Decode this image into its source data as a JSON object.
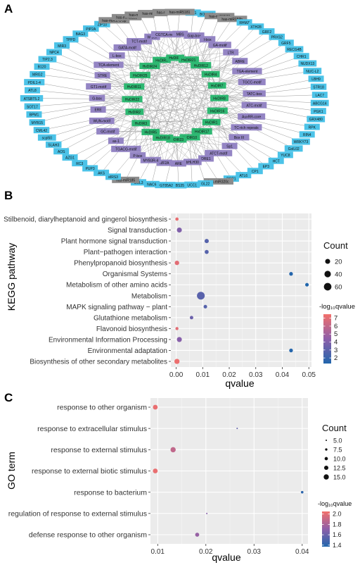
{
  "panel_labels": {
    "a": "A",
    "b": "B",
    "c": "C"
  },
  "network": {
    "colors": {
      "receptor": "#4cc3e8",
      "motif": "#9485c4",
      "mirna": "#8c8c8c",
      "gene": "#2eb872",
      "edge": "#9a9a9a"
    },
    "nodes": [
      {
        "label": "SP1",
        "type": "receptor"
      },
      {
        "label": "BOLU13",
        "type": "receptor"
      },
      {
        "label": "ATC-motif",
        "type": "motif"
      },
      {
        "label": "has-miR3522",
        "type": "mirna"
      },
      {
        "label": "has-miR159b",
        "type": "mirna"
      },
      {
        "label": "RHMZ",
        "type": "receptor"
      },
      {
        "label": "XTH28",
        "type": "receptor"
      },
      {
        "label": "GRF2",
        "type": "receptor"
      },
      {
        "label": "AuxRR-core",
        "type": "motif"
      },
      {
        "label": "TC-rich repeats",
        "type": "motif"
      },
      {
        "label": "PRXS2",
        "type": "receptor"
      },
      {
        "label": "GRF5",
        "type": "receptor"
      },
      {
        "label": "RECG4B",
        "type": "receptor"
      },
      {
        "label": "CHR1",
        "type": "receptor"
      },
      {
        "label": "Box III",
        "type": "motif"
      },
      {
        "label": "NUDX13",
        "type": "receptor"
      },
      {
        "label": "NUC-L2",
        "type": "receptor"
      },
      {
        "label": "LBH9",
        "type": "receptor"
      },
      {
        "label": "HvDIR16",
        "type": "gene"
      },
      {
        "label": "HvDIR1",
        "type": "gene"
      },
      {
        "label": "Sp1",
        "type": "motif"
      },
      {
        "label": "ATCT-motif",
        "type": "motif"
      },
      {
        "label": "STR18",
        "type": "receptor"
      },
      {
        "label": "LAC7",
        "type": "receptor"
      },
      {
        "label": "DRE1",
        "type": "motif"
      },
      {
        "label": "bHLH30",
        "type": "motif"
      },
      {
        "label": "HvDIR17",
        "type": "gene"
      },
      {
        "label": "HvDIR10",
        "type": "gene"
      },
      {
        "label": "ARE",
        "type": "motif"
      },
      {
        "label": "HvDIR23",
        "type": "gene"
      },
      {
        "label": "MF2A",
        "type": "motif"
      },
      {
        "label": "ABCG14",
        "type": "receptor"
      },
      {
        "label": "MYB3R-4",
        "type": "motif"
      },
      {
        "label": "P-box",
        "type": "motif"
      },
      {
        "label": "HvDIR18",
        "type": "gene"
      },
      {
        "label": "TGACG-motif",
        "type": "motif"
      },
      {
        "label": "as-1",
        "type": "motif"
      },
      {
        "label": "GC-motif",
        "type": "motif"
      },
      {
        "label": "WUN-motif",
        "type": "motif"
      },
      {
        "label": "ERE",
        "type": "motif"
      },
      {
        "label": "PGK1",
        "type": "receptor"
      },
      {
        "label": "HvDIR5",
        "type": "gene"
      },
      {
        "label": "HvDIR3",
        "type": "gene"
      },
      {
        "label": "G-box",
        "type": "motif"
      },
      {
        "label": "GT1-motif",
        "type": "motif"
      },
      {
        "label": "HvDIR2",
        "type": "gene"
      },
      {
        "label": "HvDIR22",
        "type": "gene"
      },
      {
        "label": "HvDIR11",
        "type": "gene"
      },
      {
        "label": "STRE",
        "type": "motif"
      },
      {
        "label": "TCA-element",
        "type": "motif"
      },
      {
        "label": "HvDIR25",
        "type": "gene"
      },
      {
        "label": "L-box",
        "type": "motif"
      },
      {
        "label": "GATA-motif",
        "type": "motif"
      },
      {
        "label": "TCT-motif",
        "type": "motif"
      },
      {
        "label": "W box",
        "type": "motif"
      },
      {
        "label": "CGTCA-motif",
        "type": "motif"
      },
      {
        "label": "HvDIR24",
        "type": "gene"
      },
      {
        "label": "GRX480",
        "type": "receptor"
      },
      {
        "label": "HvDIR6",
        "type": "gene"
      },
      {
        "label": "HvDIR9",
        "type": "gene"
      },
      {
        "label": "RPK",
        "type": "receptor"
      },
      {
        "label": "HvDIR21",
        "type": "gene"
      },
      {
        "label": "MBS",
        "type": "motif"
      },
      {
        "label": "Gap-box",
        "type": "motif"
      },
      {
        "label": "I-box",
        "type": "motif"
      },
      {
        "label": "RIN4",
        "type": "receptor"
      },
      {
        "label": "WRKY73",
        "type": "receptor"
      },
      {
        "label": "GolL02",
        "type": "receptor"
      },
      {
        "label": "YUC8",
        "type": "receptor"
      },
      {
        "label": "GA-motif",
        "type": "motif"
      },
      {
        "label": "LTR",
        "type": "motif"
      },
      {
        "label": "ABRE",
        "type": "motif"
      },
      {
        "label": "HvDIR12",
        "type": "gene"
      },
      {
        "label": "HCT",
        "type": "receptor"
      },
      {
        "label": "EP3",
        "type": "receptor"
      },
      {
        "label": "CP1",
        "type": "receptor"
      },
      {
        "label": "ATL6",
        "type": "receptor"
      },
      {
        "label": "PGP1",
        "type": "receptor"
      },
      {
        "label": "has-miR320c",
        "type": "mirna"
      },
      {
        "label": "HvDIR4",
        "type": "gene"
      },
      {
        "label": "TGA-element",
        "type": "motif"
      },
      {
        "label": "HvDIR7",
        "type": "gene"
      },
      {
        "label": "GL22",
        "type": "receptor"
      },
      {
        "label": "UCC1",
        "type": "receptor"
      },
      {
        "label": "CBS35",
        "type": "receptor"
      },
      {
        "label": "UGT85A2",
        "type": "receptor"
      },
      {
        "label": "NAC6",
        "type": "receptor"
      },
      {
        "label": "COL3",
        "type": "receptor"
      },
      {
        "label": "has-miR185",
        "type": "mirna"
      },
      {
        "label": "HvDIR8",
        "type": "gene"
      },
      {
        "label": "MRS3",
        "type": "receptor"
      },
      {
        "label": "TGCC-motif",
        "type": "motif"
      },
      {
        "label": "AKS",
        "type": "receptor"
      },
      {
        "label": "PUP3",
        "type": "receptor"
      },
      {
        "label": "RC3",
        "type": "receptor"
      },
      {
        "label": "AZG1",
        "type": "receptor"
      },
      {
        "label": "AOS",
        "type": "receptor"
      },
      {
        "label": "SLAH3",
        "type": "receptor"
      },
      {
        "label": "scpl50",
        "type": "receptor"
      },
      {
        "label": "CML42",
        "type": "receptor"
      },
      {
        "label": "MYB15",
        "type": "receptor"
      },
      {
        "label": "BPM1",
        "type": "receptor"
      },
      {
        "label": "SOT17",
        "type": "receptor"
      },
      {
        "label": "ATSBT5.2",
        "type": "receptor"
      },
      {
        "label": "ATL8",
        "type": "receptor"
      },
      {
        "label": "PDIL1-4",
        "type": "receptor"
      },
      {
        "label": "TATC-box",
        "type": "motif"
      },
      {
        "label": "MRG2",
        "type": "receptor"
      },
      {
        "label": "B120",
        "type": "receptor"
      },
      {
        "label": "TIP2.3",
        "type": "receptor"
      },
      {
        "label": "NPC4",
        "type": "receptor"
      },
      {
        "label": "MIR3",
        "type": "receptor"
      },
      {
        "label": "TPPD",
        "type": "receptor"
      },
      {
        "label": "BAG3",
        "type": "receptor"
      },
      {
        "label": "PIP2A",
        "type": "receptor"
      },
      {
        "label": "ZIP10",
        "type": "receptor"
      },
      {
        "label": "has-miR171-3p",
        "type": "mirna"
      },
      {
        "label": "has-miR5221",
        "type": "mirna"
      },
      {
        "label": "has-miR8214",
        "type": "mirna"
      },
      {
        "label": "has-miR8176",
        "type": "mirna"
      },
      {
        "label": "has-miR165",
        "type": "mirna"
      },
      {
        "label": "has-miR5181",
        "type": "mirna"
      }
    ]
  },
  "kegg": {
    "ylabel": "KEGG pathway",
    "chart_data": {
      "type": "scatter",
      "xlabel": "qvalue",
      "ylabel": "KEGG pathway",
      "xlim": [
        -0.002,
        0.051
      ],
      "xticks": [
        "0.00",
        "0.01",
        "0.02",
        "0.03",
        "0.04",
        "0.05"
      ],
      "xtick_values": [
        0,
        0.01,
        0.02,
        0.03,
        0.04,
        0.05
      ],
      "grid": true,
      "categories": [
        "Biosynthesis of other secondary metabolites",
        "Environmental adaptation",
        "Environmental Information Processing",
        "Flavonoid biosynthesis",
        "Glutathione metabolism",
        "MAPK signaling pathway − plant",
        "Metabolism",
        "Metabolism of other amino acids",
        "Organismal Systems",
        "Phenylpropanoid biosynthesis",
        "Plant−pathogen interaction",
        "Plant hormone signal transduction",
        "Signal transduction",
        "Stilbenoid, diarylheptanoid and gingerol biosynthesis"
      ],
      "points": [
        {
          "category": "Stilbenoid, diarylheptanoid and gingerol biosynthesis",
          "q": 0.0003,
          "count": 5,
          "neglog10q": 7.2
        },
        {
          "category": "Signal transduction",
          "q": 0.0012,
          "count": 20,
          "neglog10q": 4.0
        },
        {
          "category": "Plant hormone signal transduction",
          "q": 0.0115,
          "count": 12,
          "neglog10q": 2.8
        },
        {
          "category": "Plant−pathogen interaction",
          "q": 0.0115,
          "count": 10,
          "neglog10q": 2.8
        },
        {
          "category": "Phenylpropanoid biosynthesis",
          "q": 0.0003,
          "count": 14,
          "neglog10q": 7.0
        },
        {
          "category": "Organismal Systems",
          "q": 0.0433,
          "count": 8,
          "neglog10q": 1.4
        },
        {
          "category": "Metabolism of other amino acids",
          "q": 0.0493,
          "count": 7,
          "neglog10q": 1.3
        },
        {
          "category": "Metabolism",
          "q": 0.0093,
          "count": 65,
          "neglog10q": 2.9
        },
        {
          "category": "MAPK signaling pathway − plant",
          "q": 0.011,
          "count": 7,
          "neglog10q": 2.8
        },
        {
          "category": "Glutathione metabolism",
          "q": 0.0058,
          "count": 6,
          "neglog10q": 3.4
        },
        {
          "category": "Flavonoid biosynthesis",
          "q": 0.0003,
          "count": 4,
          "neglog10q": 7.0
        },
        {
          "category": "Environmental Information Processing",
          "q": 0.0012,
          "count": 20,
          "neglog10q": 4.2
        },
        {
          "category": "Environmental adaptation",
          "q": 0.0433,
          "count": 8,
          "neglog10q": 1.4
        },
        {
          "category": "Biosynthesis of other secondary metabolites",
          "q": 0.0003,
          "count": 22,
          "neglog10q": 7.3
        }
      ],
      "size_legend": {
        "title": "Count",
        "values": [
          20,
          40,
          60
        ]
      },
      "color_legend": {
        "title": "-log₁₀qvalue",
        "range": [
          1.3,
          7.5
        ],
        "ticks": [
          2,
          3,
          4,
          5,
          6,
          7
        ],
        "low_color": "#2166ac",
        "mid_color": "#8e5faa",
        "high_color": "#f2706b"
      }
    }
  },
  "go": {
    "ylabel": "GO term",
    "chart_data": {
      "type": "scatter",
      "xlabel": "qvalue",
      "ylabel": "GO term",
      "xlim": [
        0.0085,
        0.0412
      ],
      "xticks": [
        "0.01",
        "0.02",
        "0.03",
        "0.04"
      ],
      "xtick_values": [
        0.01,
        0.02,
        0.03,
        0.04
      ],
      "grid": true,
      "categories": [
        "defense response to other organism",
        "regulation of response to external stimulus",
        "response to bacterium",
        "response to external biotic stimulus",
        "response to external stimulus",
        "response to extracellular stimulus",
        "response to other organism"
      ],
      "points": [
        {
          "category": "response to other organism",
          "q": 0.0095,
          "count": 14,
          "neglog10q": 2.02
        },
        {
          "category": "response to extracellular stimulus",
          "q": 0.0265,
          "count": 5,
          "neglog10q": 1.58
        },
        {
          "category": "response to external stimulus",
          "q": 0.0132,
          "count": 15,
          "neglog10q": 1.88
        },
        {
          "category": "response to external biotic stimulus",
          "q": 0.0095,
          "count": 14,
          "neglog10q": 2.02
        },
        {
          "category": "response to bacterium",
          "q": 0.04,
          "count": 8,
          "neglog10q": 1.4
        },
        {
          "category": "regulation of response to external stimulus",
          "q": 0.0202,
          "count": 5,
          "neglog10q": 1.69
        },
        {
          "category": "defense response to other organism",
          "q": 0.0182,
          "count": 12,
          "neglog10q": 1.74
        }
      ],
      "size_legend": {
        "title": "Count",
        "values": [
          "5.0",
          "7.5",
          "10.0",
          "12.5",
          "15.0"
        ]
      },
      "color_legend": {
        "title": "-log₁₀qvalue",
        "range": [
          1.37,
          2.05
        ],
        "ticks": [
          "1.4",
          "1.6",
          "1.8",
          "2.0"
        ],
        "low_color": "#2166ac",
        "mid_color": "#8e5faa",
        "high_color": "#f2706b"
      }
    }
  }
}
